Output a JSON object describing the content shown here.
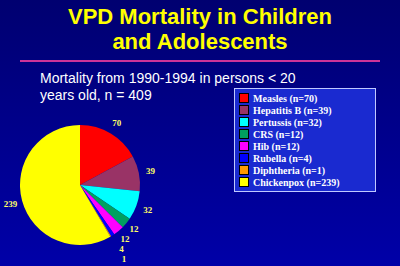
{
  "chart_data": {
    "type": "pie",
    "title": "VPD Mortality in Children and Adolescents",
    "subtitle": "Mortality from 1990-1994 in persons < 20 years old, n = 409",
    "categories": [
      "Measles (n=70)",
      "Hepatitis B (n=39)",
      "Pertussis (n=32)",
      "CRS (n=12)",
      "Hib (n=12)",
      "Rubella (n=4)",
      "Diphtheria (n=1)",
      "Chickenpox (n=239)"
    ],
    "values": [
      70,
      39,
      32,
      12,
      12,
      4,
      1,
      239
    ],
    "colors": [
      "#ff0000",
      "#993366",
      "#00ffff",
      "#00a060",
      "#ff00ff",
      "#0000ff",
      "#ff9900",
      "#ffff00"
    ],
    "data_labels": true,
    "legend": "right"
  }
}
